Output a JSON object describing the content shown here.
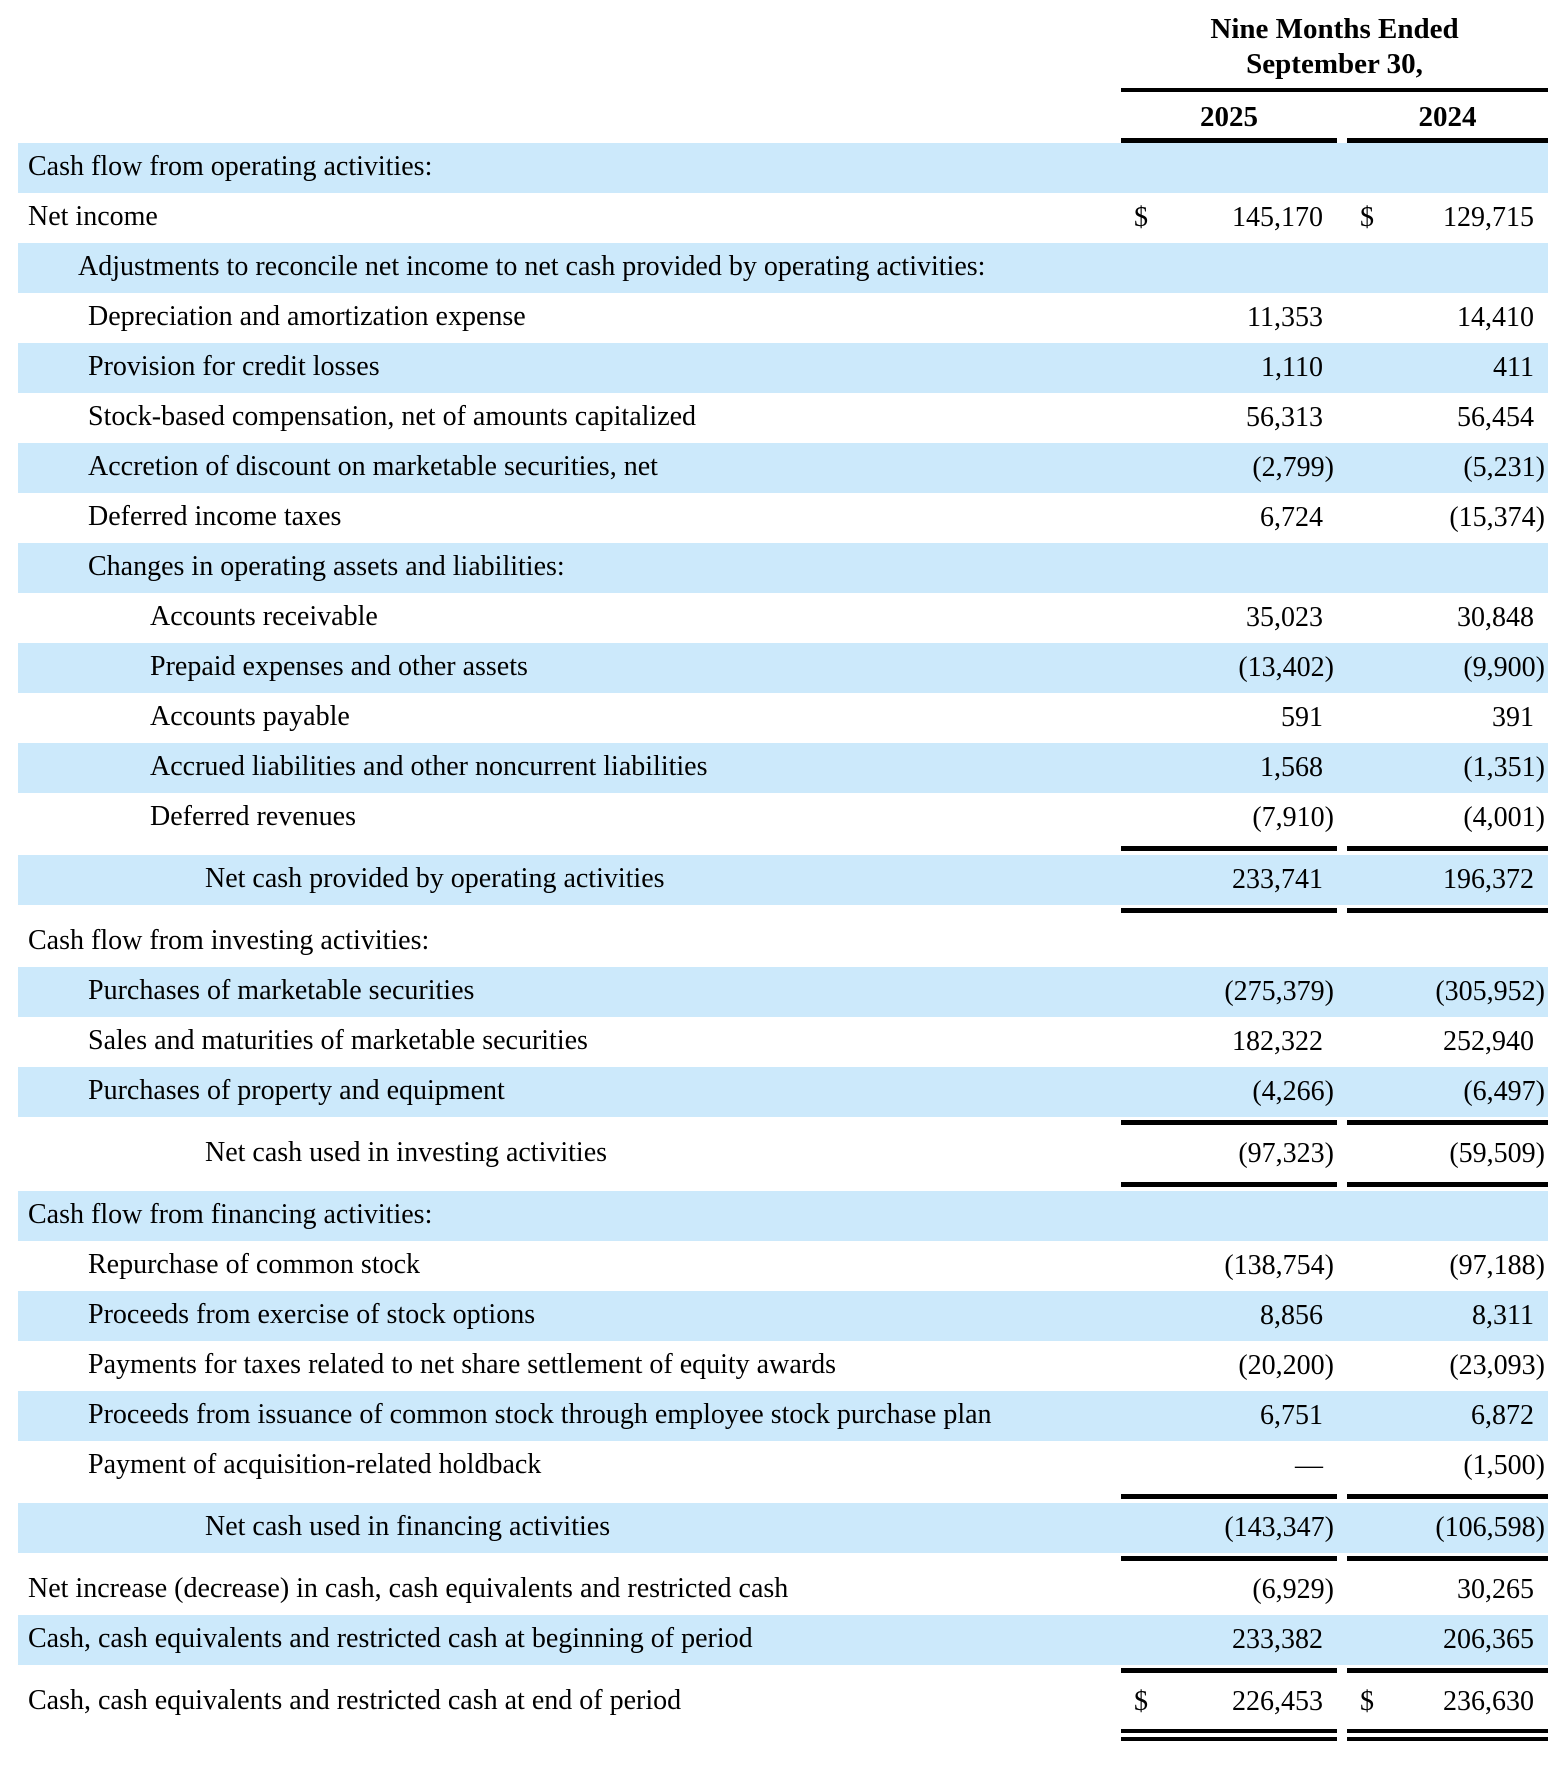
{
  "header": {
    "period_line1": "Nine Months Ended",
    "period_line2": "September 30,",
    "years": [
      "2025",
      "2024"
    ]
  },
  "colors": {
    "row_highlight": "#cce9fb",
    "rule": "#000000",
    "text": "#000000"
  },
  "table": {
    "columns": [
      "2025",
      "2024"
    ],
    "rows": [
      {
        "label": "Cash flow from operating activities:",
        "indent": 0,
        "bg": "blue",
        "d1": "",
        "v1": "",
        "d2": "",
        "v2": "",
        "rule_after": "none"
      },
      {
        "label": "Net income",
        "indent": 0,
        "bg": "white",
        "d1": "$",
        "v1": "145,170",
        "d2": "$",
        "v2": "129,715",
        "rule_after": "none"
      },
      {
        "label": "Adjustments to reconcile net income to net cash provided by operating activities:",
        "indent": 1,
        "bg": "blue",
        "d1": "",
        "v1": "",
        "d2": "",
        "v2": "",
        "rule_after": "none"
      },
      {
        "label": "Depreciation and amortization expense",
        "indent": 2,
        "bg": "white",
        "d1": "",
        "v1": "11,353",
        "d2": "",
        "v2": "14,410",
        "rule_after": "none"
      },
      {
        "label": "Provision for credit losses",
        "indent": 2,
        "bg": "blue",
        "d1": "",
        "v1": "1,110",
        "d2": "",
        "v2": "411",
        "rule_after": "none"
      },
      {
        "label": "Stock-based compensation, net of amounts capitalized",
        "indent": 2,
        "bg": "white",
        "d1": "",
        "v1": "56,313",
        "d2": "",
        "v2": "56,454",
        "rule_after": "none"
      },
      {
        "label": "Accretion of discount on marketable securities, net",
        "indent": 2,
        "bg": "blue",
        "d1": "",
        "v1": "(2,799)",
        "d2": "",
        "v2": "(5,231)",
        "rule_after": "none"
      },
      {
        "label": "Deferred income taxes",
        "indent": 2,
        "bg": "white",
        "d1": "",
        "v1": "6,724",
        "d2": "",
        "v2": "(15,374)",
        "rule_after": "none"
      },
      {
        "label": "Changes in operating assets and liabilities:",
        "indent": 2,
        "bg": "blue",
        "d1": "",
        "v1": "",
        "d2": "",
        "v2": "",
        "rule_after": "none"
      },
      {
        "label": "Accounts receivable",
        "indent": 3,
        "bg": "white",
        "d1": "",
        "v1": "35,023",
        "d2": "",
        "v2": "30,848",
        "rule_after": "none"
      },
      {
        "label": "Prepaid expenses and other assets",
        "indent": 3,
        "bg": "blue",
        "d1": "",
        "v1": "(13,402)",
        "d2": "",
        "v2": "(9,900)",
        "rule_after": "none"
      },
      {
        "label": "Accounts payable",
        "indent": 3,
        "bg": "white",
        "d1": "",
        "v1": "591",
        "d2": "",
        "v2": "391",
        "rule_after": "none"
      },
      {
        "label": "Accrued liabilities and other noncurrent liabilities",
        "indent": 3,
        "bg": "blue",
        "d1": "",
        "v1": "1,568",
        "d2": "",
        "v2": "(1,351)",
        "rule_after": "none"
      },
      {
        "label": "Deferred revenues",
        "indent": 3,
        "bg": "white",
        "d1": "",
        "v1": "(7,910)",
        "d2": "",
        "v2": "(4,001)",
        "rule_after": "single"
      },
      {
        "label": "Net cash provided by operating activities",
        "indent": 4,
        "bg": "blue",
        "d1": "",
        "v1": "233,741",
        "d2": "",
        "v2": "196,372",
        "rule_after": "single"
      },
      {
        "label": "Cash flow from investing activities:",
        "indent": 0,
        "bg": "white",
        "d1": "",
        "v1": "",
        "d2": "",
        "v2": "",
        "rule_after": "none"
      },
      {
        "label": "Purchases of marketable securities",
        "indent": 2,
        "bg": "blue",
        "d1": "",
        "v1": "(275,379)",
        "d2": "",
        "v2": "(305,952)",
        "rule_after": "none"
      },
      {
        "label": "Sales and maturities of marketable securities",
        "indent": 2,
        "bg": "white",
        "d1": "",
        "v1": "182,322",
        "d2": "",
        "v2": "252,940",
        "rule_after": "none"
      },
      {
        "label": "Purchases of property and equipment",
        "indent": 2,
        "bg": "blue",
        "d1": "",
        "v1": "(4,266)",
        "d2": "",
        "v2": "(6,497)",
        "rule_after": "single"
      },
      {
        "label": "Net cash used in investing activities",
        "indent": 4,
        "bg": "white",
        "d1": "",
        "v1": "(97,323)",
        "d2": "",
        "v2": "(59,509)",
        "rule_after": "single"
      },
      {
        "label": "Cash flow from financing activities:",
        "indent": 0,
        "bg": "blue",
        "d1": "",
        "v1": "",
        "d2": "",
        "v2": "",
        "rule_after": "none"
      },
      {
        "label": "Repurchase of common stock",
        "indent": 2,
        "bg": "white",
        "d1": "",
        "v1": "(138,754)",
        "d2": "",
        "v2": "(97,188)",
        "rule_after": "none"
      },
      {
        "label": "Proceeds from exercise of stock options",
        "indent": 2,
        "bg": "blue",
        "d1": "",
        "v1": "8,856",
        "d2": "",
        "v2": "8,311",
        "rule_after": "none"
      },
      {
        "label": "Payments for taxes related to net share settlement of equity awards",
        "indent": 2,
        "bg": "white",
        "d1": "",
        "v1": "(20,200)",
        "d2": "",
        "v2": "(23,093)",
        "rule_after": "none"
      },
      {
        "label": "Proceeds from issuance of common stock through employee stock purchase plan",
        "indent": 2,
        "bg": "blue",
        "d1": "",
        "v1": "6,751",
        "d2": "",
        "v2": "6,872",
        "rule_after": "none"
      },
      {
        "label": "Payment of acquisition-related holdback",
        "indent": 2,
        "bg": "white",
        "d1": "",
        "v1": "—",
        "d2": "",
        "v2": "(1,500)",
        "rule_after": "single"
      },
      {
        "label": "Net cash used in financing activities",
        "indent": 4,
        "bg": "blue",
        "d1": "",
        "v1": "(143,347)",
        "d2": "",
        "v2": "(106,598)",
        "rule_after": "single"
      },
      {
        "label": "Net increase (decrease) in cash, cash equivalents and restricted cash",
        "indent": 0,
        "bg": "white",
        "d1": "",
        "v1": "(6,929)",
        "d2": "",
        "v2": "30,265",
        "rule_after": "none"
      },
      {
        "label": "Cash, cash equivalents and restricted cash at beginning of period",
        "indent": 0,
        "bg": "blue",
        "d1": "",
        "v1": "233,382",
        "d2": "",
        "v2": "206,365",
        "rule_after": "single"
      },
      {
        "label": "Cash, cash equivalents and restricted cash at end of period",
        "indent": 0,
        "bg": "white",
        "d1": "$",
        "v1": "226,453",
        "d2": "$",
        "v2": "236,630",
        "rule_after": "double"
      }
    ]
  }
}
